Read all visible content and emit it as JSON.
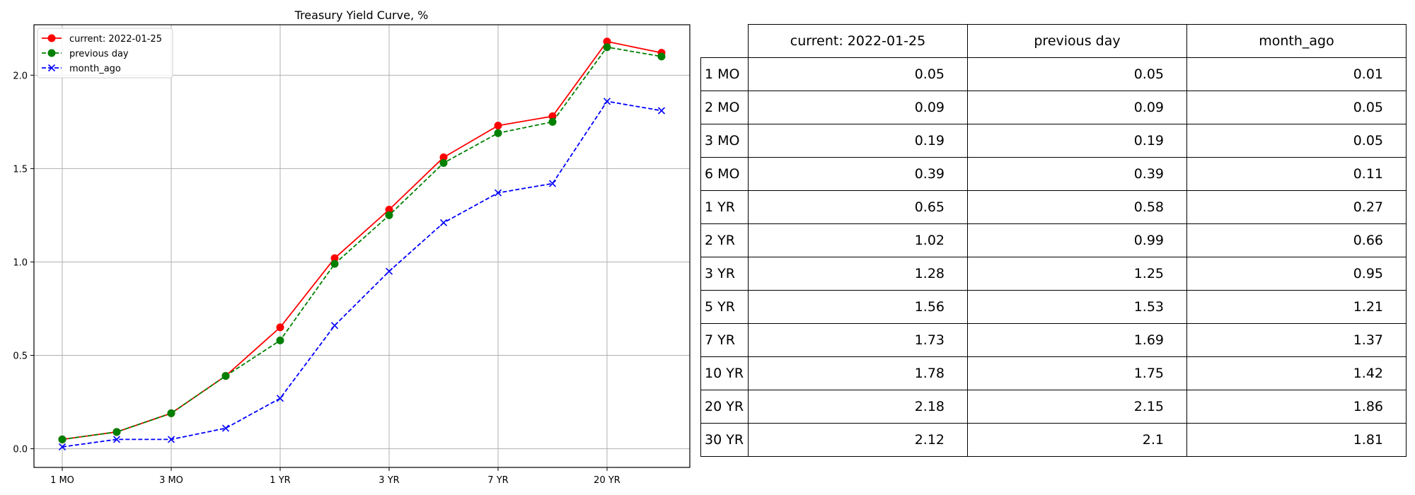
{
  "chart_data": {
    "type": "line",
    "title": "Treasury Yield Curve, %",
    "categories": [
      "1 MO",
      "2 MO",
      "3 MO",
      "6 MO",
      "1 YR",
      "2 YR",
      "3 YR",
      "5 YR",
      "7 YR",
      "10 YR",
      "20 YR",
      "30 YR"
    ],
    "x_tick_labels": [
      "1 MO",
      "3 MO",
      "1 YR",
      "3 YR",
      "7 YR",
      "20 YR"
    ],
    "y_ticks": [
      "0.0",
      "0.5",
      "1.0",
      "1.5",
      "2.0"
    ],
    "ylim": [
      -0.1,
      2.27
    ],
    "grid": true,
    "legend_position": "top-left",
    "series": [
      {
        "name": "current: 2022-01-25",
        "color": "#ff0000",
        "linestyle": "solid",
        "marker": "circle",
        "values": [
          0.05,
          0.09,
          0.19,
          0.39,
          0.65,
          1.02,
          1.28,
          1.56,
          1.73,
          1.78,
          2.18,
          2.12
        ]
      },
      {
        "name": "previous day",
        "color": "#008000",
        "linestyle": "dashed",
        "marker": "circle",
        "values": [
          0.05,
          0.09,
          0.19,
          0.39,
          0.58,
          0.99,
          1.25,
          1.53,
          1.69,
          1.75,
          2.15,
          2.1
        ]
      },
      {
        "name": "month_ago",
        "color": "#0000ff",
        "linestyle": "dashed",
        "marker": "x",
        "values": [
          0.01,
          0.05,
          0.05,
          0.11,
          0.27,
          0.66,
          0.95,
          1.21,
          1.37,
          1.42,
          1.86,
          1.81
        ]
      }
    ]
  },
  "table": {
    "columns": [
      "current: 2022-01-25",
      "previous day",
      "month_ago"
    ],
    "rows": [
      {
        "label": "1 MO",
        "values": [
          "0.05",
          "0.05",
          "0.01"
        ]
      },
      {
        "label": "2 MO",
        "values": [
          "0.09",
          "0.09",
          "0.05"
        ]
      },
      {
        "label": "3 MO",
        "values": [
          "0.19",
          "0.19",
          "0.05"
        ]
      },
      {
        "label": "6 MO",
        "values": [
          "0.39",
          "0.39",
          "0.11"
        ]
      },
      {
        "label": "1 YR",
        "values": [
          "0.65",
          "0.58",
          "0.27"
        ]
      },
      {
        "label": "2 YR",
        "values": [
          "1.02",
          "0.99",
          "0.66"
        ]
      },
      {
        "label": "3 YR",
        "values": [
          "1.28",
          "1.25",
          "0.95"
        ]
      },
      {
        "label": "5 YR",
        "values": [
          "1.56",
          "1.53",
          "1.21"
        ]
      },
      {
        "label": "7 YR",
        "values": [
          "1.73",
          "1.69",
          "1.37"
        ]
      },
      {
        "label": "10 YR",
        "values": [
          "1.78",
          "1.75",
          "1.42"
        ]
      },
      {
        "label": "20 YR",
        "values": [
          "2.18",
          "2.15",
          "1.86"
        ]
      },
      {
        "label": "30 YR",
        "values": [
          "2.12",
          "2.1",
          "1.81"
        ]
      }
    ]
  }
}
